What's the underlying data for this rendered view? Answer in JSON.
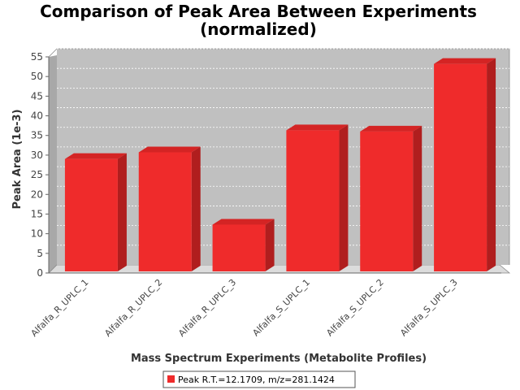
{
  "chart_data": {
    "type": "bar",
    "title_line1": "Comparison of Peak Area Between Experiments",
    "title_line2": "(normalized)",
    "xlabel": "Mass Spectrum Experiments (Metabolite Profiles)",
    "ylabel": "Peak Area (1e-3)",
    "categories": [
      "Alfalfa_R_UPLC_1",
      "Alfalfa_R_UPLC_2",
      "Alfalfa_R_UPLC_3",
      "Alfalfa_S_UPLC_1",
      "Alfalfa_S_UPLC_2",
      "Alfalfa_S_UPLC_3"
    ],
    "series": [
      {
        "name": "Peak R.T.=12.1709, m/z=281.1424",
        "values": [
          28.6,
          30.3,
          11.9,
          35.9,
          35.6,
          52.8
        ],
        "color": "#ef2b2b"
      }
    ],
    "ylim": [
      0,
      55
    ],
    "yticks": [
      "0",
      "5",
      "10",
      "15",
      "20",
      "25",
      "30",
      "35",
      "40",
      "45",
      "50",
      "55"
    ],
    "grid": true,
    "legend_position": "bottom",
    "plot_background": "#c0c0c0"
  }
}
